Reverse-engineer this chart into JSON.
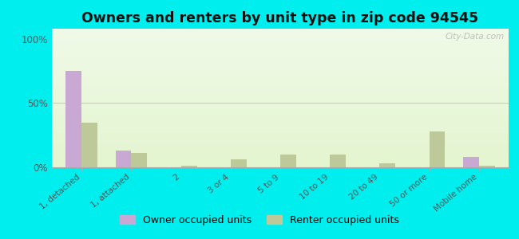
{
  "title": "Owners and renters by unit type in zip code 94545",
  "categories": [
    "1, detached",
    "1, attached",
    "2",
    "3 or 4",
    "5 to 9",
    "10 to 19",
    "20 to 49",
    "50 or more",
    "Mobile home"
  ],
  "owner_values": [
    75,
    13,
    0,
    0,
    0,
    0,
    0,
    0,
    8
  ],
  "renter_values": [
    35,
    11,
    1,
    6,
    10,
    10,
    3,
    28,
    1
  ],
  "owner_color": "#c9a8d4",
  "renter_color": "#bec99a",
  "plot_bg_top": "#f0fae8",
  "plot_bg_bottom": "#e4f5d0",
  "outer_bg": "#00eeee",
  "ylabel_ticks": [
    "0%",
    "50%",
    "100%"
  ],
  "yticks": [
    0,
    50,
    100
  ],
  "ylim": [
    0,
    108
  ],
  "legend_owner": "Owner occupied units",
  "legend_renter": "Renter occupied units",
  "bar_width": 0.32,
  "title_fontsize": 12.5,
  "watermark": "City-Data.com"
}
